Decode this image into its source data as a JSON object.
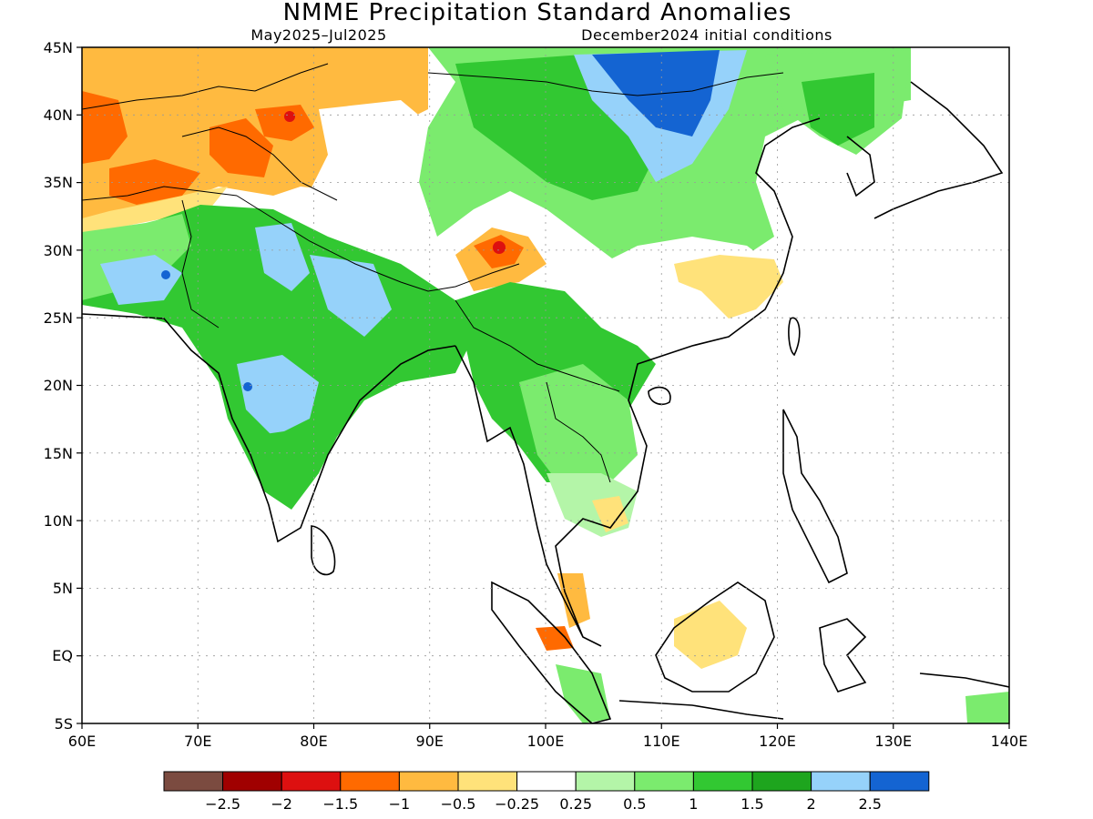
{
  "title": "NMME Precipitation Standard Anomalies",
  "subtitle_left": "May2025–Jul2025",
  "subtitle_right": "December2024 initial conditions",
  "x_ticks": [
    "60E",
    "70E",
    "80E",
    "90E",
    "100E",
    "110E",
    "120E",
    "130E",
    "140E"
  ],
  "y_ticks": [
    "45N",
    "40N",
    "35N",
    "30N",
    "25N",
    "20N",
    "15N",
    "10N",
    "5N",
    "EQ",
    "5S"
  ],
  "lon_range": [
    60,
    140
  ],
  "lat_range": [
    -5,
    45
  ],
  "colorbar": {
    "colors": [
      "#7b4b40",
      "#a00000",
      "#dd1010",
      "#ff6a00",
      "#ffba40",
      "#ffe27a",
      "#ffffff",
      "#b4f5a8",
      "#7beb6e",
      "#32c832",
      "#1ea51e",
      "#96d2fa",
      "#1464d2"
    ],
    "labels": [
      "−2.5",
      "−2",
      "−1.5",
      "−1",
      "−0.5",
      "−0.25",
      "0.25",
      "0.5",
      "1",
      "1.5",
      "2",
      "2.5"
    ]
  },
  "legend_colors": {
    "strong_dry": "#ff6a00",
    "dry": "#ffba40",
    "slightly_dry": "#ffe27a",
    "wet": "#7beb6e",
    "very_wet": "#32c832",
    "wettest": "#1ea51e",
    "blue": "#96d2fa",
    "dark_blue": "#1464d2",
    "red": "#dd1010"
  }
}
